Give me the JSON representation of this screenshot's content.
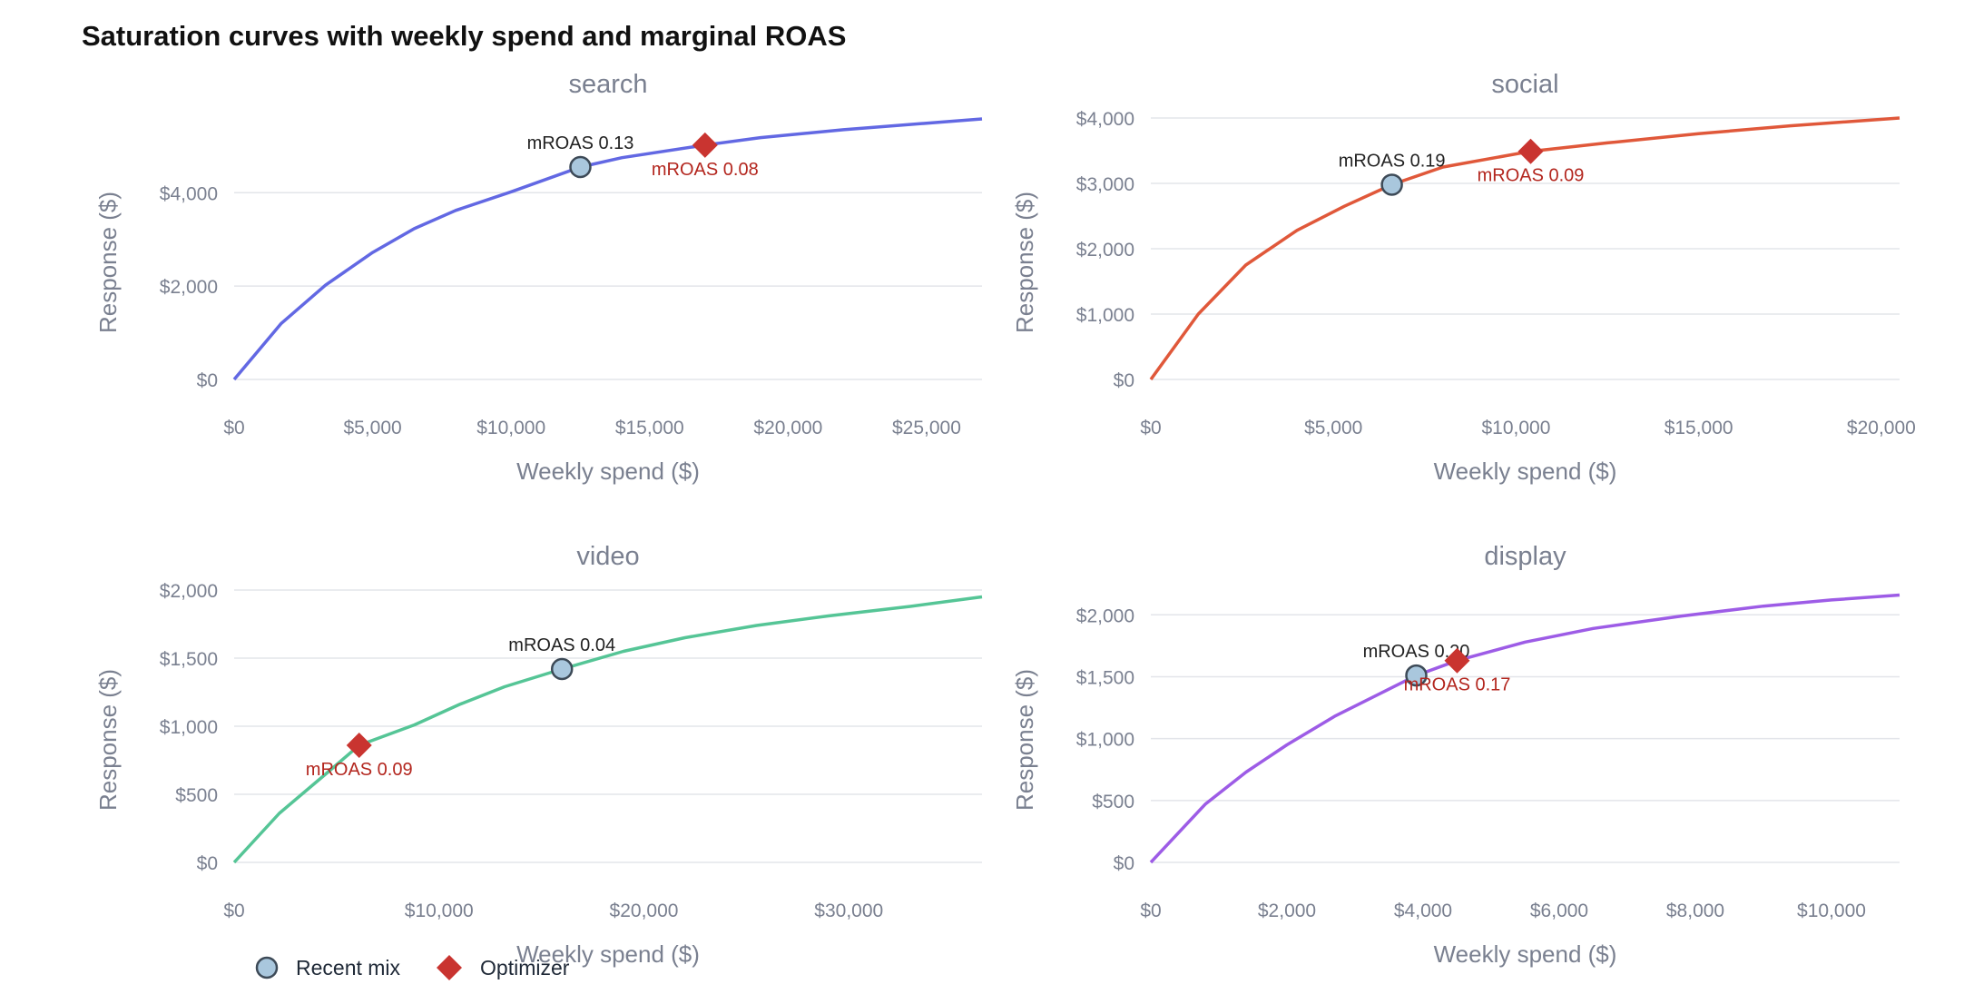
{
  "title": "Saturation curves with weekly spend and marginal ROAS",
  "legend": {
    "recent_label": "Recent mix",
    "optimizer_label": "Optimizer"
  },
  "colors": {
    "recent_fill": "#a9c7dd",
    "recent_stroke": "#3d4a57",
    "optimizer": "#c93430",
    "optimizer_text": "#b3261e",
    "recent_text": "#222222",
    "axis_text": "#7a8090",
    "grid": "#e3e5ea"
  },
  "chart_data": [
    {
      "type": "line",
      "title": "search",
      "xlabel": "Weekly spend ($)",
      "ylabel": "Response ($)",
      "color": "#6268e3",
      "xlim": [
        0,
        27000
      ],
      "ylim": [
        0,
        5600
      ],
      "xticks": [
        0,
        5000,
        10000,
        15000,
        20000,
        25000
      ],
      "xtick_labels": [
        "$0",
        "$5,000",
        "$10,000",
        "$15,000",
        "$20,000",
        "$25,000"
      ],
      "yticks": [
        0,
        2000,
        4000
      ],
      "ytick_labels": [
        "$0",
        "$2,000",
        "$4,000"
      ],
      "x": [
        0,
        1700,
        3300,
        5000,
        6500,
        8000,
        10000,
        12500,
        14000,
        17000,
        19000,
        22000,
        25000,
        27000
      ],
      "y": [
        0,
        1200,
        2020,
        2720,
        3230,
        3620,
        4020,
        4550,
        4750,
        5020,
        5180,
        5350,
        5490,
        5580
      ],
      "grid": true,
      "recent": {
        "x": 12500,
        "y": 4550,
        "label": "mROAS 0.13"
      },
      "optimizer": {
        "x": 17000,
        "y": 5020,
        "label": "mROAS 0.08"
      }
    },
    {
      "type": "line",
      "title": "social",
      "xlabel": "Weekly spend ($)",
      "ylabel": "Response ($)",
      "color": "#e0583a",
      "xlim": [
        0,
        20500
      ],
      "ylim": [
        0,
        4000
      ],
      "xticks": [
        0,
        5000,
        10000,
        15000,
        20000
      ],
      "xtick_labels": [
        "$0",
        "$5,000",
        "$10,000",
        "$15,000",
        "$20,000"
      ],
      "yticks": [
        0,
        1000,
        2000,
        3000,
        4000
      ],
      "ytick_labels": [
        "$0",
        "$1,000",
        "$2,000",
        "$3,000",
        "$4,000"
      ],
      "x": [
        0,
        1300,
        2600,
        4000,
        5300,
        6600,
        8000,
        10400,
        12500,
        15000,
        17500,
        20500
      ],
      "y": [
        0,
        1000,
        1750,
        2280,
        2650,
        2980,
        3250,
        3490,
        3620,
        3760,
        3880,
        4000
      ],
      "grid": true,
      "recent": {
        "x": 6600,
        "y": 2980,
        "label": "mROAS 0.19"
      },
      "optimizer": {
        "x": 10400,
        "y": 3490,
        "label": "mROAS 0.09"
      }
    },
    {
      "type": "line",
      "title": "video",
      "xlabel": "Weekly spend ($)",
      "ylabel": "Response ($)",
      "color": "#55c596",
      "xlim": [
        0,
        36500
      ],
      "ylim": [
        0,
        2000
      ],
      "xticks": [
        0,
        10000,
        20000,
        30000
      ],
      "xtick_labels": [
        "$0",
        "$10,000",
        "$20,000",
        "$30,000"
      ],
      "yticks": [
        0,
        500,
        1000,
        1500,
        2000
      ],
      "ytick_labels": [
        "$0",
        "$500",
        "$1,000",
        "$1,500",
        "$2,000"
      ],
      "x": [
        0,
        2200,
        4400,
        6100,
        8800,
        11000,
        13200,
        16000,
        19000,
        22000,
        25500,
        29000,
        33000,
        36500
      ],
      "y": [
        0,
        360,
        640,
        860,
        1010,
        1160,
        1290,
        1420,
        1550,
        1650,
        1740,
        1810,
        1880,
        1950
      ],
      "grid": true,
      "recent": {
        "x": 16000,
        "y": 1420,
        "label": "mROAS 0.04"
      },
      "optimizer": {
        "x": 6100,
        "y": 860,
        "label": "mROAS 0.09"
      }
    },
    {
      "type": "line",
      "title": "display",
      "xlabel": "Weekly spend ($)",
      "ylabel": "Response ($)",
      "color": "#9d5ce6",
      "xlim": [
        0,
        11000
      ],
      "ylim": [
        0,
        2200
      ],
      "xticks": [
        0,
        2000,
        4000,
        6000,
        8000,
        10000
      ],
      "xtick_labels": [
        "$0",
        "$2,000",
        "$4,000",
        "$6,000",
        "$8,000",
        "$10,000"
      ],
      "yticks": [
        0,
        500,
        1000,
        1500,
        2000
      ],
      "ytick_labels": [
        "$0",
        "$500",
        "$1,000",
        "$1,500",
        "$2,000"
      ],
      "x": [
        0,
        800,
        1400,
        2000,
        2700,
        3500,
        3900,
        4500,
        5500,
        6500,
        7800,
        9000,
        10000,
        11000
      ],
      "y": [
        0,
        470,
        730,
        950,
        1180,
        1400,
        1510,
        1630,
        1780,
        1890,
        1990,
        2070,
        2120,
        2160
      ],
      "grid": true,
      "recent": {
        "x": 3900,
        "y": 1510,
        "label": "mROAS 0.20"
      },
      "optimizer": {
        "x": 4500,
        "y": 1630,
        "label": "mROAS 0.17"
      }
    }
  ]
}
